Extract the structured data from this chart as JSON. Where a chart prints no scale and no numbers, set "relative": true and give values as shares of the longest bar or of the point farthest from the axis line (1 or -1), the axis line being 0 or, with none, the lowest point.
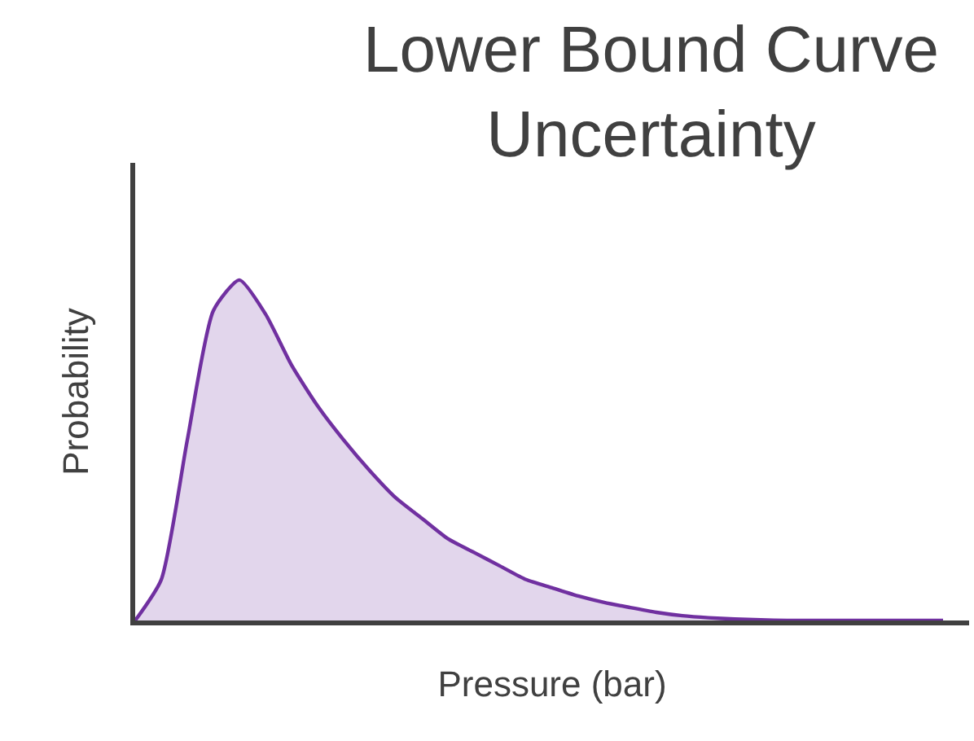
{
  "chart_data": {
    "type": "area",
    "title": "Lower Bound Curve Uncertainty",
    "xlabel": "Pressure (bar)",
    "ylabel": "Probability",
    "relative": true,
    "color": "#7030a0",
    "tick_labels": false,
    "categories": [
      null,
      null,
      null,
      null,
      null,
      null,
      null,
      null,
      null,
      null,
      null,
      null,
      null,
      null,
      null,
      null,
      null,
      null,
      null,
      null,
      null,
      null,
      null,
      null,
      null,
      null,
      null,
      null,
      null,
      null,
      null,
      null
    ],
    "values": [
      0,
      0.12,
      0.53,
      0.91,
      1.0,
      0.9,
      0.75,
      0.63,
      0.53,
      0.44,
      0.36,
      0.3,
      0.24,
      0.2,
      0.16,
      0.12,
      0.096,
      0.072,
      0.053,
      0.038,
      0.024,
      0.014,
      0.008,
      0.004,
      0.002,
      0,
      0,
      0,
      0,
      0,
      0,
      0
    ]
  }
}
